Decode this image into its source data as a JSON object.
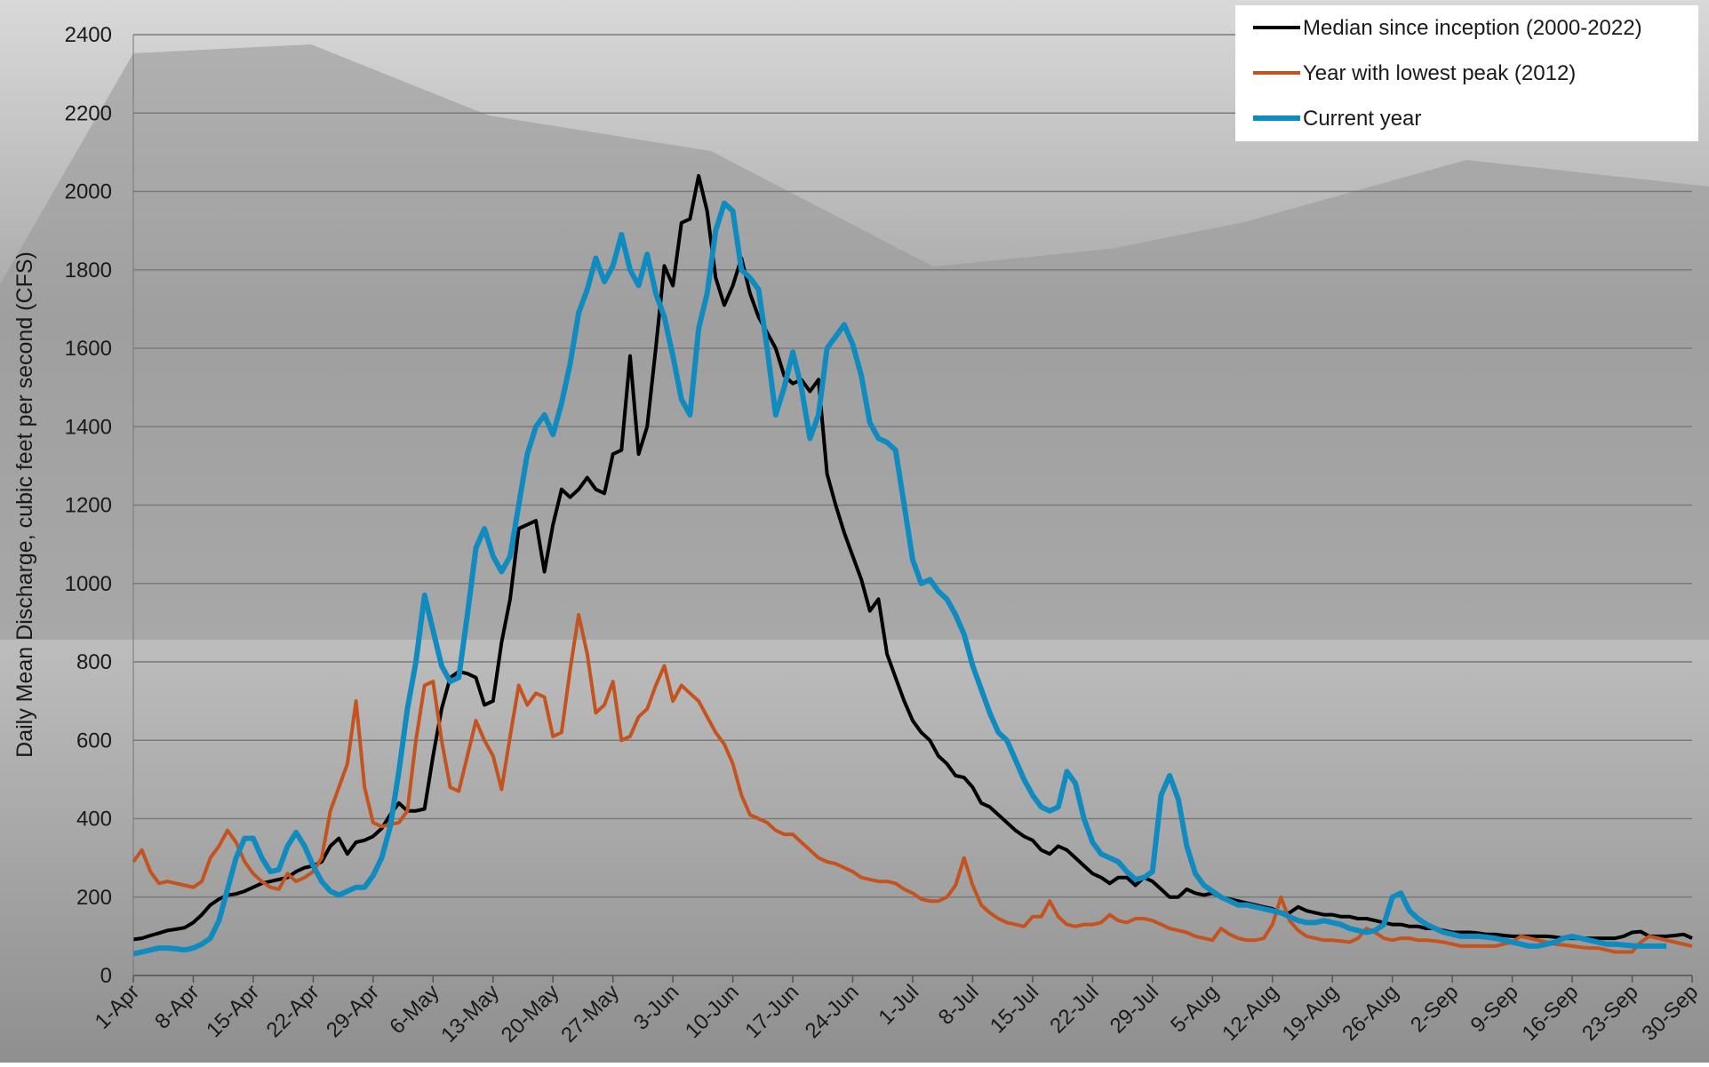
{
  "chart_data": {
    "type": "line",
    "y_label": "Daily Mean Discharge, cubic feet per second (CFS)",
    "ylim": [
      0,
      2400
    ],
    "yticks": [
      0,
      200,
      400,
      600,
      800,
      1000,
      1200,
      1400,
      1600,
      1800,
      2000,
      2200,
      2400
    ],
    "grid": true,
    "legend": "top-right",
    "categories": [
      "1-Apr",
      null,
      null,
      null,
      null,
      null,
      null,
      "8-Apr",
      null,
      null,
      null,
      null,
      null,
      null,
      "15-Apr",
      null,
      null,
      null,
      null,
      null,
      null,
      "22-Apr",
      null,
      null,
      null,
      null,
      null,
      null,
      "29-Apr",
      null,
      null,
      null,
      null,
      null,
      null,
      "6-May",
      null,
      null,
      null,
      null,
      null,
      null,
      "13-May",
      null,
      null,
      null,
      null,
      null,
      null,
      "20-May",
      null,
      null,
      null,
      null,
      null,
      null,
      "27-May",
      null,
      null,
      null,
      null,
      null,
      null,
      "3-Jun",
      null,
      null,
      null,
      null,
      null,
      null,
      "10-Jun",
      null,
      null,
      null,
      null,
      null,
      null,
      "17-Jun",
      null,
      null,
      null,
      null,
      null,
      null,
      "24-Jun",
      null,
      null,
      null,
      null,
      null,
      null,
      "1-Jul",
      null,
      null,
      null,
      null,
      null,
      null,
      "8-Jul",
      null,
      null,
      null,
      null,
      null,
      null,
      "15-Jul",
      null,
      null,
      null,
      null,
      null,
      null,
      "22-Jul",
      null,
      null,
      null,
      null,
      null,
      null,
      "29-Jul",
      null,
      null,
      null,
      null,
      null,
      null,
      "5-Aug",
      null,
      null,
      null,
      null,
      null,
      null,
      "12-Aug",
      null,
      null,
      null,
      null,
      null,
      null,
      "19-Aug",
      null,
      null,
      null,
      null,
      null,
      null,
      "26-Aug",
      null,
      null,
      null,
      null,
      null,
      null,
      "2-Sep",
      null,
      null,
      null,
      null,
      null,
      null,
      "9-Sep",
      null,
      null,
      null,
      null,
      null,
      null,
      "16-Sep",
      null,
      null,
      null,
      null,
      null,
      null,
      "23-Sep",
      null,
      null,
      null,
      null,
      null,
      null,
      "30-Sep"
    ],
    "series": [
      {
        "name": "Median since inception (2000-2022)",
        "color": "#000000",
        "width": 4,
        "values": [
          92,
          95,
          102,
          108,
          115,
          118,
          122,
          135,
          155,
          180,
          195,
          205,
          208,
          215,
          225,
          235,
          240,
          245,
          250,
          265,
          275,
          280,
          290,
          330,
          350,
          310,
          340,
          345,
          355,
          375,
          410,
          440,
          420,
          420,
          425,
          560,
          680,
          760,
          775,
          770,
          760,
          690,
          700,
          850,
          960,
          1140,
          1150,
          1160,
          1030,
          1150,
          1240,
          1220,
          1240,
          1270,
          1240,
          1230,
          1330,
          1340,
          1580,
          1330,
          1400,
          1600,
          1810,
          1760,
          1920,
          1930,
          2040,
          1950,
          1780,
          1710,
          1760,
          1830,
          1740,
          1680,
          1640,
          1600,
          1530,
          1510,
          1520,
          1490,
          1520,
          1280,
          1200,
          1130,
          1070,
          1010,
          930,
          960,
          820,
          760,
          700,
          650,
          620,
          600,
          560,
          540,
          510,
          505,
          480,
          440,
          430,
          410,
          390,
          370,
          355,
          345,
          320,
          310,
          330,
          320,
          300,
          280,
          260,
          250,
          235,
          250,
          250,
          230,
          250,
          240,
          220,
          200,
          200,
          220,
          210,
          205,
          210,
          200,
          195,
          190,
          185,
          180,
          175,
          170,
          160,
          160,
          175,
          165,
          160,
          155,
          155,
          150,
          150,
          145,
          145,
          140,
          135,
          130,
          130,
          125,
          125,
          120,
          120,
          115,
          110,
          110,
          110,
          108,
          105,
          105,
          102,
          100,
          100,
          100,
          100,
          100,
          98,
          95,
          95,
          95,
          95,
          95,
          95,
          95,
          100,
          110,
          112,
          100,
          100,
          100,
          102,
          105,
          95
        ]
      },
      {
        "name": "Year with lowest peak (2012)",
        "color": "#c5531f",
        "width": 4,
        "values": [
          290,
          320,
          265,
          235,
          240,
          235,
          230,
          225,
          240,
          300,
          330,
          370,
          340,
          290,
          260,
          240,
          225,
          220,
          260,
          240,
          250,
          265,
          300,
          420,
          480,
          540,
          700,
          480,
          390,
          380,
          385,
          390,
          420,
          600,
          740,
          750,
          600,
          480,
          470,
          560,
          650,
          600,
          560,
          475,
          610,
          740,
          690,
          720,
          710,
          610,
          620,
          780,
          920,
          820,
          670,
          690,
          750,
          600,
          610,
          660,
          680,
          740,
          790,
          700,
          740,
          720,
          700,
          660,
          620,
          590,
          540,
          460,
          410,
          400,
          390,
          370,
          360,
          360,
          340,
          320,
          300,
          290,
          285,
          275,
          265,
          250,
          245,
          240,
          240,
          235,
          220,
          210,
          195,
          190,
          190,
          200,
          230,
          300,
          230,
          180,
          160,
          145,
          135,
          130,
          125,
          150,
          150,
          190,
          150,
          130,
          125,
          130,
          130,
          135,
          155,
          140,
          135,
          145,
          145,
          140,
          130,
          120,
          115,
          110,
          100,
          95,
          90,
          120,
          105,
          95,
          90,
          90,
          95,
          130,
          200,
          140,
          115,
          100,
          95,
          90,
          90,
          88,
          85,
          95,
          120,
          110,
          95,
          90,
          95,
          95,
          90,
          90,
          88,
          85,
          80,
          75,
          75,
          75,
          75,
          75,
          80,
          85,
          100,
          95,
          90,
          85,
          80,
          78,
          75,
          72,
          70,
          70,
          65,
          60,
          60,
          60,
          85,
          100,
          95,
          90,
          85,
          80,
          75
        ]
      },
      {
        "name": "Current year",
        "color": "#0f8bc0",
        "width": 6,
        "values": [
          55,
          60,
          65,
          70,
          70,
          68,
          65,
          70,
          80,
          95,
          140,
          220,
          300,
          350,
          350,
          300,
          265,
          270,
          330,
          365,
          330,
          280,
          240,
          215,
          205,
          215,
          225,
          225,
          255,
          300,
          380,
          520,
          680,
          800,
          970,
          880,
          790,
          750,
          760,
          920,
          1090,
          1140,
          1070,
          1030,
          1070,
          1200,
          1330,
          1400,
          1430,
          1380,
          1460,
          1560,
          1690,
          1750,
          1830,
          1770,
          1810,
          1890,
          1800,
          1760,
          1840,
          1740,
          1680,
          1580,
          1470,
          1430,
          1650,
          1740,
          1900,
          1970,
          1950,
          1800,
          1780,
          1750,
          1600,
          1430,
          1500,
          1590,
          1500,
          1370,
          1430,
          1600,
          1630,
          1660,
          1610,
          1530,
          1410,
          1370,
          1360,
          1340,
          1200,
          1060,
          1000,
          1010,
          980,
          960,
          920,
          870,
          790,
          730,
          670,
          620,
          600,
          550,
          500,
          460,
          430,
          420,
          430,
          520,
          490,
          400,
          340,
          310,
          300,
          290,
          265,
          245,
          250,
          265,
          460,
          510,
          450,
          330,
          260,
          230,
          215,
          200,
          190,
          180,
          180,
          175,
          170,
          165,
          160,
          150,
          140,
          135,
          135,
          140,
          135,
          130,
          120,
          115,
          110,
          115,
          130,
          200,
          210,
          165,
          145,
          130,
          120,
          110,
          105,
          100,
          100,
          100,
          98,
          95,
          90,
          85,
          80,
          75,
          75,
          80,
          85,
          95,
          100,
          95,
          90,
          85,
          80,
          80,
          78,
          76,
          75,
          75,
          75,
          75,
          null,
          null,
          null
        ]
      }
    ]
  }
}
